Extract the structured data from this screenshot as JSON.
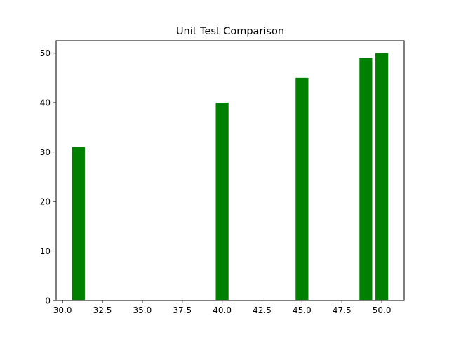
{
  "chart_data": {
    "type": "bar",
    "title": "Unit Test Comparison",
    "xlabel": "",
    "ylabel": "",
    "x": [
      31,
      40,
      45,
      49,
      50
    ],
    "values": [
      31,
      40,
      45,
      49,
      50
    ],
    "bar_width": 0.8,
    "bar_color": "#008000",
    "xlim": [
      29.6,
      51.4
    ],
    "ylim": [
      0,
      52.5
    ],
    "x_ticks": [
      "30.0",
      "32.5",
      "35.0",
      "37.5",
      "40.0",
      "42.5",
      "45.0",
      "47.5",
      "50.0"
    ],
    "y_ticks": [
      "0",
      "10",
      "20",
      "30",
      "40",
      "50"
    ],
    "grid": false,
    "legend": "none"
  }
}
